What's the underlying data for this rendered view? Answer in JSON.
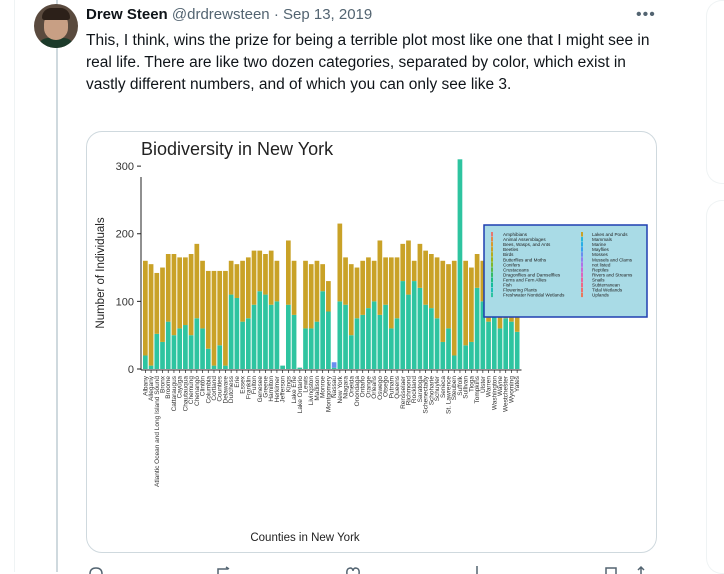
{
  "tweet": {
    "author_name": "Drew Steen",
    "handle": "@drdrewsteen",
    "separator": "·",
    "date": "Sep 13, 2019",
    "more_icon": "more-dots-icon",
    "text": "This, I think, wins the prize for being a terrible plot most like one that I might see in real life. There are like two dozen categories, separated by color, which exist in vastly different numbers, and of which you can only see like 3."
  },
  "colors": {
    "gold": "#c9a227",
    "teal": "#2ec4a0",
    "blue": "#6a8ef0",
    "legend_bg": "#a9dbe6",
    "legend_border": "#1f3fb0"
  },
  "chart_data": {
    "type": "bar",
    "title": "Biodiversity in New York",
    "xlabel": "Counties in New York",
    "ylabel": "Number of Individuals",
    "ylim": [
      0,
      320
    ],
    "yticks": [
      0,
      100,
      200,
      300
    ],
    "x_tick_labels": [
      "Albany",
      "Allegany",
      "Atlantic Ocean and Long Island Sound",
      "Bronx",
      "Broome",
      "Cattaraugus",
      "Cayuga",
      "Chautauqua",
      "Chemung",
      "Chenango",
      "Clinton",
      "Columbia",
      "Cortland",
      "Counties",
      "Delaware",
      "Dutchess",
      "Erie",
      "Essex",
      "Franklin",
      "Fulton",
      "Genesee",
      "Greene",
      "Hamilton",
      "Herkimer",
      "Jefferson",
      "Kings",
      "Lake Erie",
      "Lake Ontario",
      "Lewis",
      "Livingston",
      "Madison",
      "Monroe",
      "Montgomery",
      "Nassau",
      "New York",
      "Niagara",
      "Oneida",
      "Onondaga",
      "Ontario",
      "Orange",
      "Orleans",
      "Oswego",
      "Otsego",
      "Putnam",
      "Queens",
      "Rensselaer",
      "Richmond",
      "Rockland",
      "Saratoga",
      "Schenectady",
      "Schoharie",
      "Schuyler",
      "Seneca",
      "St. Lawrence",
      "Steuben",
      "Suffolk",
      "Sullivan",
      "Tioga",
      "Tompkins",
      "Ulster",
      "Warren",
      "Washington",
      "Wayne",
      "Westchester",
      "Wyoming",
      "Yates"
    ],
    "series": [
      {
        "name": "Freshwater Nontidal Wetlands",
        "values": [
          20,
          5,
          52,
          40,
          70,
          50,
          60,
          65,
          50,
          75,
          60,
          30,
          5,
          35,
          5,
          110,
          105,
          70,
          75,
          95,
          115,
          110,
          95,
          100,
          5,
          95,
          80,
          2,
          60,
          60,
          70,
          115,
          85,
          2,
          100,
          95,
          50,
          75,
          80,
          90,
          100,
          80,
          95,
          60,
          75,
          130,
          110,
          130,
          120,
          95,
          90,
          75,
          40,
          60,
          20,
          310,
          35,
          40,
          120,
          100,
          70,
          95,
          60,
          75,
          70,
          55
        ]
      },
      {
        "name": "Lakes and Ponds",
        "values": [
          140,
          150,
          90,
          110,
          100,
          120,
          105,
          100,
          120,
          110,
          100,
          115,
          140,
          110,
          140,
          50,
          50,
          90,
          90,
          80,
          60,
          60,
          80,
          60,
          0,
          95,
          80,
          0,
          100,
          95,
          90,
          40,
          45,
          0,
          115,
          70,
          105,
          75,
          80,
          75,
          60,
          110,
          70,
          105,
          90,
          55,
          80,
          30,
          65,
          80,
          80,
          90,
          120,
          95,
          140,
          0,
          125,
          110,
          50,
          60,
          95,
          60,
          90,
          95,
          70,
          105
        ]
      },
      {
        "name": "Mammals",
        "values": [
          0,
          0,
          0,
          0,
          0,
          0,
          0,
          0,
          0,
          0,
          0,
          0,
          0,
          0,
          0,
          0,
          0,
          0,
          0,
          0,
          0,
          0,
          0,
          0,
          0,
          0,
          0,
          0,
          0,
          0,
          0,
          0,
          0,
          8,
          0,
          0,
          0,
          0,
          0,
          0,
          0,
          0,
          0,
          0,
          0,
          0,
          0,
          0,
          0,
          0,
          0,
          0,
          0,
          0,
          0,
          0,
          0,
          0,
          0,
          0,
          0,
          0,
          0,
          0,
          0,
          0
        ]
      }
    ],
    "legend": {
      "placement": "right",
      "col1": [
        "Amphibians",
        "Animal Assemblages",
        "Bees, Wasps, and Ants",
        "Beetles",
        "Birds",
        "Butterflies and Moths",
        "Conifers",
        "Crustaceans",
        "Dragonflies and Damselflies",
        "Ferns and Fern Allies",
        "Fish",
        "Flowering Plants",
        "Freshwater Nontidal Wetlands"
      ],
      "col2": [
        "Lakes and Ponds",
        "Mammals",
        "Marine",
        "Mayflies",
        "Mosses",
        "Mussels and Clams",
        "not listed",
        "Reptiles",
        "Rivers and Streams",
        "Snails",
        "Subterranean",
        "Tidal Wetlands",
        "Uplands"
      ],
      "col1_colors": [
        "#e8776f",
        "#e28a4a",
        "#d99b2b",
        "#c9a227",
        "#b5ad1d",
        "#9db31c",
        "#7fb82c",
        "#5aba4a",
        "#35bb66",
        "#1fbc82",
        "#16bd9c",
        "#21bdb6",
        "#2ec4a0"
      ],
      "col2_colors": [
        "#c9a227",
        "#2cb8d6",
        "#28aee6",
        "#3aa0f0",
        "#6a8ef0",
        "#927ef0",
        "#b072e8",
        "#c96ad6",
        "#dc66bd",
        "#e866a0",
        "#ee6a86",
        "#ee7070",
        "#e87a5c"
      ]
    }
  },
  "actions": {
    "reply_icon": "reply-icon",
    "retweet_icon": "retweet-icon",
    "like_icon": "heart-icon",
    "views_icon": "views-icon",
    "bookmark_icon": "bookmark-icon",
    "share_icon": "share-icon"
  }
}
